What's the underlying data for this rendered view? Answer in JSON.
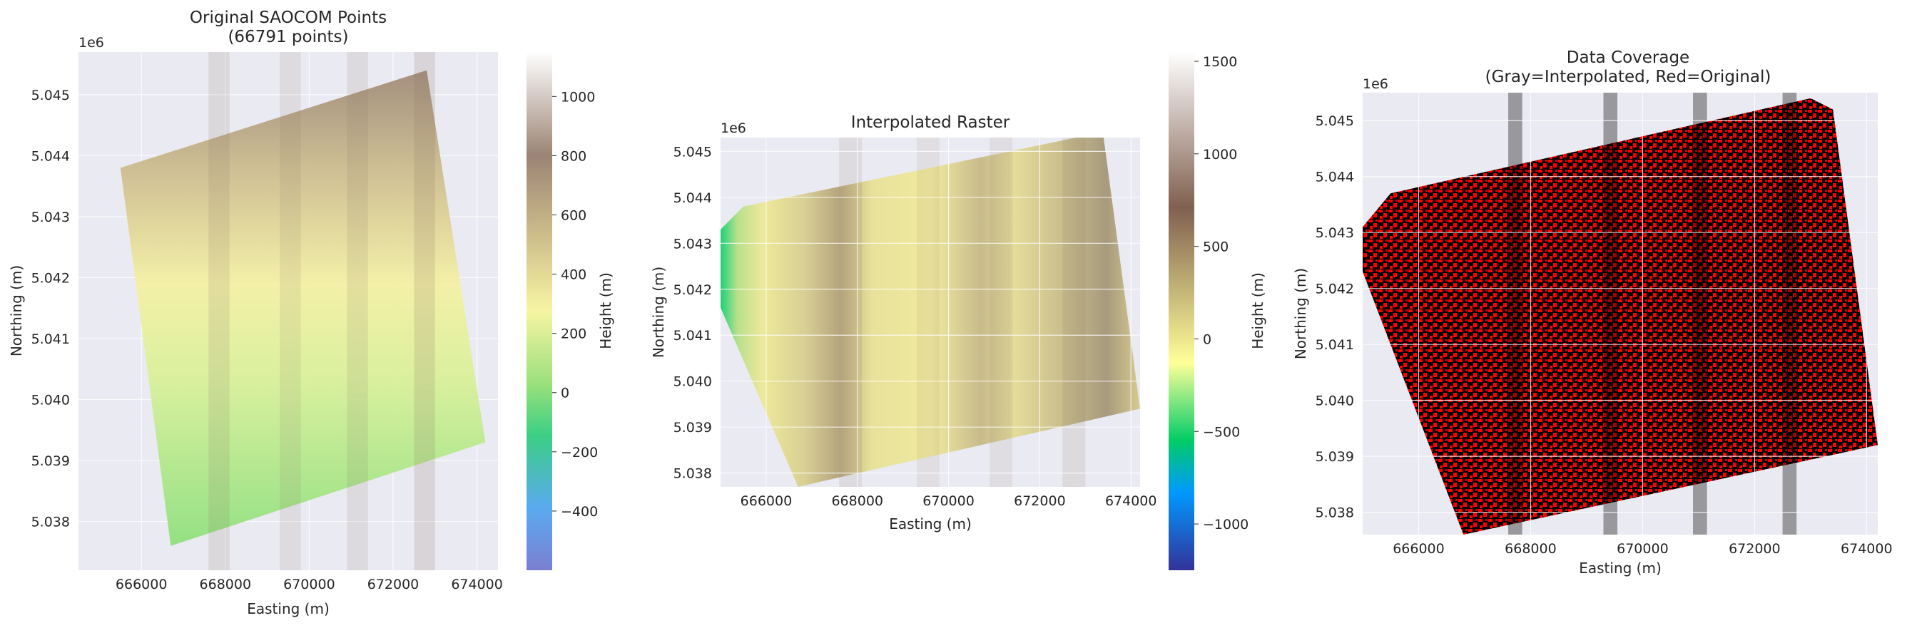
{
  "chart_data": [
    {
      "type": "scatter",
      "title": "Original SAOCOM Points\n(66791 points)",
      "xlabel": "Easting (m)",
      "ylabel": "Northing (m)",
      "y_multiplier": "1e6",
      "xlim": [
        664500,
        674500
      ],
      "ylim": [
        5.0372,
        5.0457
      ],
      "xticks": [
        666000,
        668000,
        670000,
        672000,
        674000
      ],
      "xtick_labels": [
        "666000",
        "668000",
        "670000",
        "672000",
        "674000"
      ],
      "yticks": [
        5.038,
        5.039,
        5.04,
        5.041,
        5.042,
        5.043,
        5.044,
        5.045
      ],
      "ytick_labels": [
        "5.038",
        "5.039",
        "5.040",
        "5.041",
        "5.042",
        "5.043",
        "5.044",
        "5.045"
      ],
      "point_count": 66791,
      "footprint": [
        [
          665500,
          5.0438
        ],
        [
          672800,
          5.0454
        ],
        [
          674200,
          5.0393
        ],
        [
          666700,
          5.0376
        ]
      ],
      "colorbar": {
        "label": "Height (m)",
        "range": [
          -600,
          1150
        ],
        "ticks": [
          -400,
          -200,
          0,
          200,
          400,
          600,
          800,
          1000
        ],
        "tick_labels": [
          "−400",
          "−200",
          "0",
          "200",
          "400",
          "600",
          "800",
          "1000"
        ],
        "colormap": "terrain"
      },
      "grid": true
    },
    {
      "type": "heatmap",
      "title": "Interpolated Raster",
      "xlabel": "Easting (m)",
      "ylabel": "Northing (m)",
      "y_multiplier": "1e6",
      "xlim": [
        665000,
        674200
      ],
      "ylim": [
        5.0377,
        5.0453
      ],
      "xticks": [
        666000,
        668000,
        670000,
        672000,
        674000
      ],
      "xtick_labels": [
        "666000",
        "668000",
        "670000",
        "672000",
        "674000"
      ],
      "yticks": [
        5.038,
        5.039,
        5.04,
        5.041,
        5.042,
        5.043,
        5.044,
        5.045
      ],
      "ytick_labels": [
        "5.038",
        "5.039",
        "5.040",
        "5.041",
        "5.042",
        "5.043",
        "5.044",
        "5.045"
      ],
      "footprint": [
        [
          665000,
          5.0433
        ],
        [
          665500,
          5.0438
        ],
        [
          672800,
          5.0453
        ],
        [
          673400,
          5.0453
        ],
        [
          674200,
          5.0394
        ],
        [
          666700,
          5.0377
        ],
        [
          665000,
          5.0416
        ]
      ],
      "colorbar": {
        "label": "Height (m)",
        "range": [
          -1250,
          1550
        ],
        "ticks": [
          -1000,
          -500,
          0,
          500,
          1000,
          1500
        ],
        "tick_labels": [
          "−1000",
          "−500",
          "0",
          "500",
          "1000",
          "1500"
        ],
        "colormap": "terrain"
      },
      "grid": true
    },
    {
      "type": "heatmap",
      "title": "Data Coverage\n(Gray=Interpolated, Red=Original)",
      "xlabel": "Easting (m)",
      "ylabel": "Northing (m)",
      "y_multiplier": "1e6",
      "xlim": [
        665000,
        674200
      ],
      "ylim": [
        5.0376,
        5.0455
      ],
      "xticks": [
        666000,
        668000,
        670000,
        672000,
        674000
      ],
      "xtick_labels": [
        "666000",
        "668000",
        "670000",
        "672000",
        "674000"
      ],
      "yticks": [
        5.038,
        5.039,
        5.04,
        5.041,
        5.042,
        5.043,
        5.044,
        5.045
      ],
      "ytick_labels": [
        "5.038",
        "5.039",
        "5.040",
        "5.041",
        "5.042",
        "5.043",
        "5.044",
        "5.045"
      ],
      "footprint": [
        [
          665000,
          5.0431
        ],
        [
          665500,
          5.0437
        ],
        [
          673000,
          5.0454
        ],
        [
          673400,
          5.0452
        ],
        [
          674200,
          5.0392
        ],
        [
          666800,
          5.0376
        ],
        [
          665000,
          5.0423
        ]
      ],
      "colors": {
        "interpolated": "#000000",
        "original": "#ff0000"
      },
      "grid": true
    }
  ],
  "colors": {
    "axes_bg": "#eaeaf2",
    "grid": "#ffffff",
    "text": "#262626"
  }
}
